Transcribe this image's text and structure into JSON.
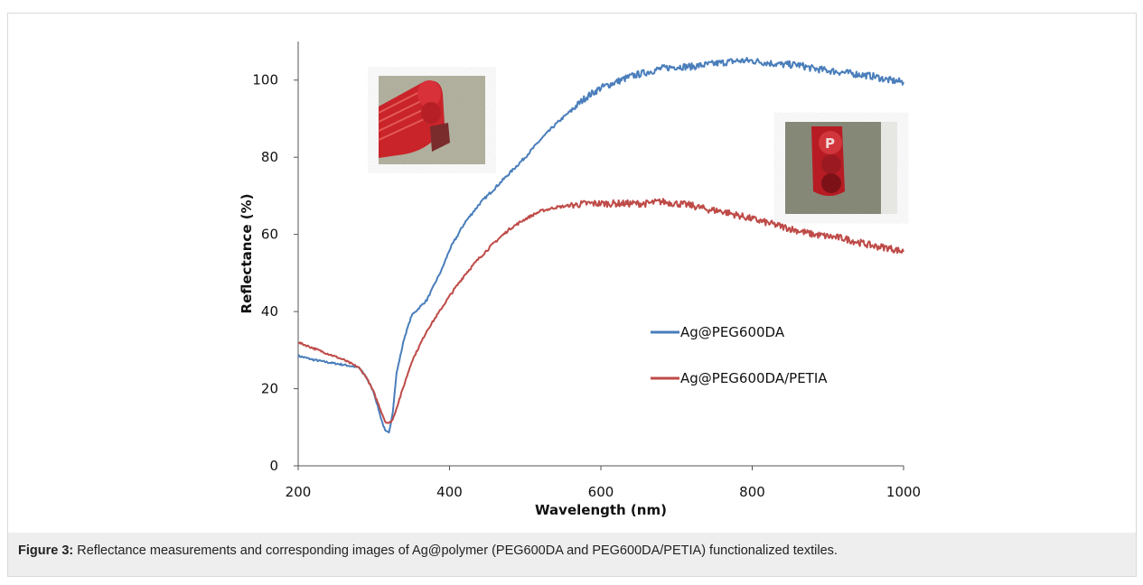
{
  "caption": {
    "label": "Figure 3:",
    "text": " Reflectance measurements and corresponding images of Ag@polymer (PEG600DA and PEG600DA/PETIA) functionalized textiles."
  },
  "chart_data": {
    "type": "line",
    "xlabel": "Wavelength (nm)",
    "ylabel": "Reflectance (%)",
    "xlim": [
      200,
      1000
    ],
    "ylim": [
      0,
      110
    ],
    "xticks": [
      200,
      400,
      600,
      800,
      1000
    ],
    "yticks": [
      0,
      20,
      40,
      60,
      80,
      100
    ],
    "grid": false,
    "legend": "center-right",
    "series": [
      {
        "name": "Ag@PEG600DA",
        "color": "#4a7ebb",
        "x": [
          200,
          220,
          240,
          260,
          280,
          290,
          300,
          310,
          315,
          320,
          325,
          330,
          340,
          350,
          360,
          370,
          380,
          390,
          400,
          420,
          440,
          460,
          480,
          500,
          520,
          540,
          560,
          580,
          600,
          620,
          640,
          660,
          680,
          700,
          720,
          740,
          760,
          780,
          800,
          820,
          840,
          860,
          880,
          900,
          920,
          940,
          960,
          980,
          1000
        ],
        "y": [
          28.5,
          27.5,
          26.8,
          26.2,
          25.5,
          23,
          19,
          12,
          9,
          8.5,
          14,
          24,
          33,
          39,
          41,
          43,
          47,
          51,
          56,
          63,
          68,
          72,
          76,
          80,
          84.5,
          88.5,
          92,
          95.5,
          98,
          99.5,
          101,
          102,
          103,
          103.5,
          103.5,
          104,
          104.5,
          105,
          105,
          104.5,
          104,
          104,
          103,
          102.5,
          102,
          101.5,
          101,
          100,
          99.5
        ]
      },
      {
        "name": "Ag@PEG600DA/PETIA",
        "color": "#be4b48",
        "x": [
          200,
          220,
          240,
          260,
          280,
          290,
          300,
          310,
          315,
          320,
          325,
          330,
          340,
          350,
          360,
          370,
          380,
          400,
          420,
          440,
          460,
          480,
          500,
          520,
          540,
          560,
          580,
          600,
          620,
          640,
          660,
          680,
          700,
          720,
          740,
          760,
          780,
          800,
          820,
          840,
          860,
          880,
          900,
          920,
          940,
          960,
          980,
          1000
        ],
        "y": [
          32,
          30.5,
          29,
          27.5,
          25.5,
          23,
          19,
          14,
          11.5,
          11,
          12,
          15,
          21,
          27,
          31,
          35,
          38,
          44,
          49.5,
          54,
          58,
          61.5,
          64,
          66,
          67,
          67.5,
          68,
          68,
          68,
          68,
          68,
          68.5,
          68,
          67.5,
          66.5,
          66,
          65,
          64,
          63,
          62,
          61,
          60,
          59.5,
          59,
          58,
          57,
          56.5,
          55.5
        ]
      }
    ]
  },
  "insets": [
    {
      "name": "photo-inset-left",
      "description_icon": "red-textile-photo"
    },
    {
      "name": "photo-inset-right",
      "description_icon": "red-textile-photo"
    }
  ]
}
